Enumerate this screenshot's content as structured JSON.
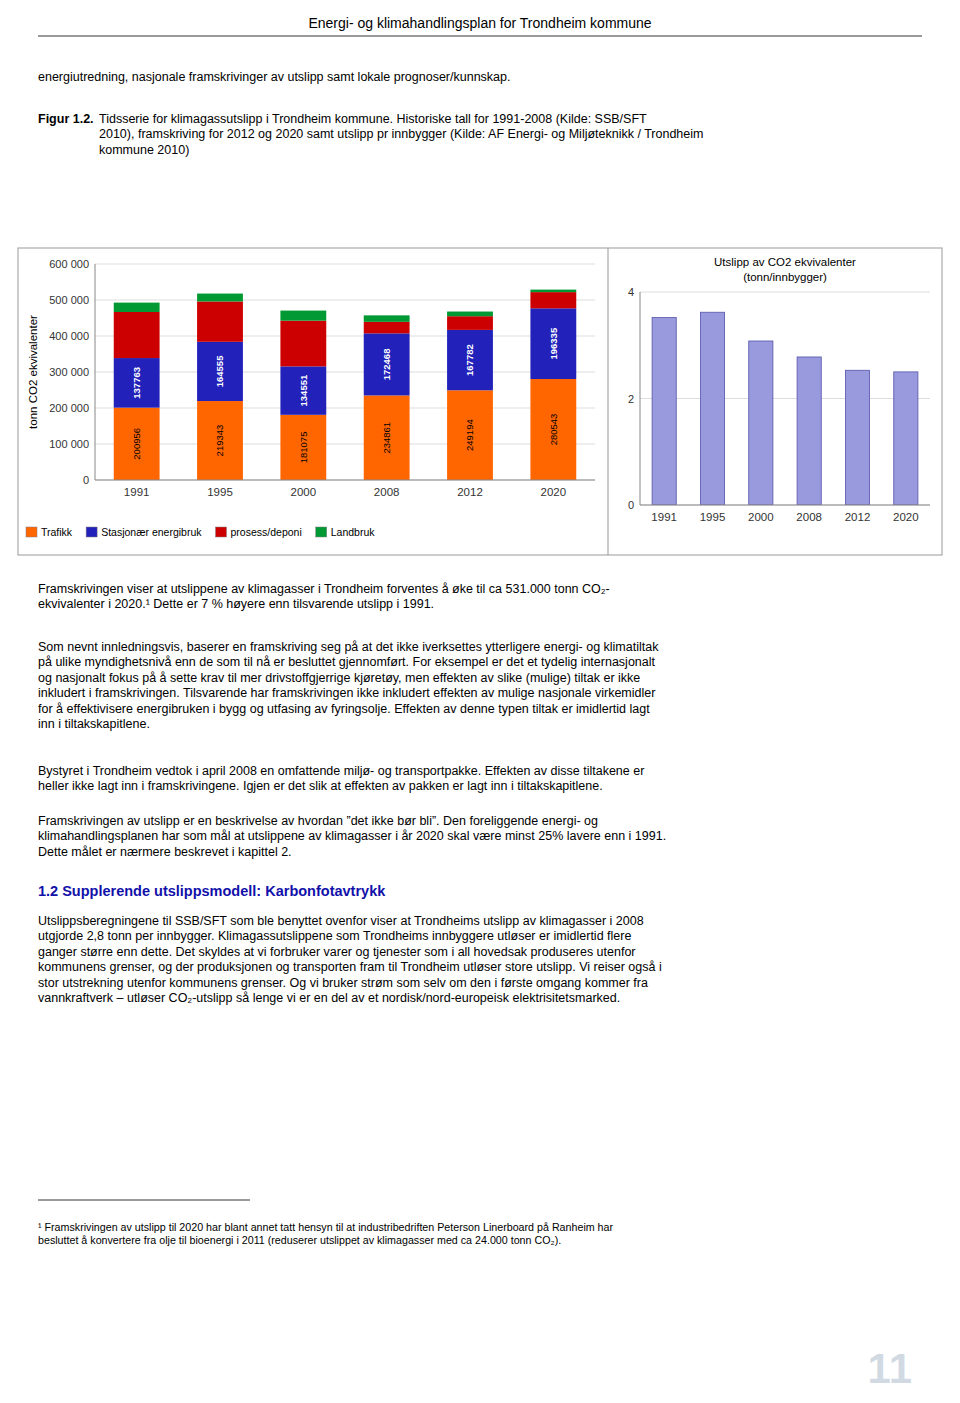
{
  "chart_data": [
    {
      "type": "bar",
      "stacked": true,
      "categories": [
        "1991",
        "1995",
        "2000",
        "2008",
        "2012",
        "2020"
      ],
      "series": [
        {
          "name": "Trafikk",
          "color": "#FF6600",
          "values": [
            200956,
            219343,
            181075,
            234861,
            249194,
            280543
          ],
          "data_labels": true
        },
        {
          "name": "Stasjonær energibruk",
          "color": "#2222BB",
          "values": [
            137763,
            164555,
            134551,
            172468,
            167782,
            196335
          ],
          "data_labels": true
        },
        {
          "name": "prosess/deponi",
          "color": "#CC0000",
          "values": [
            128000,
            112000,
            127000,
            32000,
            38000,
            45000
          ]
        },
        {
          "name": "Landbruk",
          "color": "#009933",
          "values": [
            26000,
            22000,
            28000,
            18000,
            13000,
            7000
          ]
        }
      ],
      "ylabel": "tonn CO2 ekvivalenter",
      "ylim": [
        0,
        600000
      ],
      "yticks": [
        0,
        {
          "value": 100000,
          "label": "100 000"
        },
        {
          "value": 200000,
          "label": "200 000"
        },
        {
          "value": 300000,
          "label": "300 000"
        },
        {
          "value": 400000,
          "label": "400 000"
        },
        {
          "value": 500000,
          "label": "500 000"
        },
        {
          "value": 600000,
          "label": "600 000"
        }
      ],
      "grid": true,
      "legend": "bottom"
    },
    {
      "type": "bar",
      "title": "Utslipp av CO2 ekvivalenter",
      "subtitle": "(tonn/innbygger)",
      "categories": [
        "1991",
        "1995",
        "2000",
        "2008",
        "2012",
        "2020"
      ],
      "values": [
        3.52,
        3.62,
        3.08,
        2.78,
        2.53,
        2.5
      ],
      "color": "#9999DD",
      "ylim": [
        0,
        4
      ],
      "yticks": [
        0,
        2,
        4
      ],
      "grid": true
    }
  ],
  "page": {
    "title": "Energi- og klimahandlingsplan for Trondheim kommune",
    "intro": [
      "energiutredning, nasjonale framskrivinger av utslipp samt lokale prognoser/kunnskap."
    ],
    "caption": {
      "label": "Figur 1.2.",
      "lines": [
        "Tidsserie for klimagassutslipp i Trondheim kommune. Historiske tall for 1991-2008 (Kilde: SSB/SFT",
        "2010), framskriving for 2012 og 2020 samt utslipp pr innbygger (Kilde: AF Energi- og Miljøteknikk / Trondheim",
        "kommune 2010)"
      ]
    },
    "paragraphs_1": [
      [
        "Framskrivingen viser at utslippene av klimagasser i Trondheim forventes å øke til ca 531.000 tonn CO₂-",
        "ekvivalenter i 2020.¹ Dette er 7 % høyere enn tilsvarende utslipp i 1991."
      ],
      [
        "Som nevnt innledningsvis, baserer en framskriving seg på at det ikke iverksettes ytterligere energi- og klimatiltak",
        "på ulike myndighetsnivå enn de som til nå er besluttet gjennomført. For eksempel er det et tydelig internasjonalt",
        "og nasjonalt fokus på å sette krav til mer drivstoffgjerrige kjøretøy, men effekten av slike (mulige) tiltak er ikke",
        "inkludert i framskrivingen. Tilsvarende har framskrivingen ikke inkludert effekten av mulige nasjonale virkemidler",
        "for å effektivisere energibruken i bygg og utfasing av fyringsolje. Effekten av denne typen tiltak er imidlertid lagt",
        "inn i tiltakskapitlene."
      ],
      [
        "Bystyret i Trondheim vedtok i april 2008 en omfattende miljø- og transportpakke. Effekten av disse tiltakene er",
        "heller ikke lagt inn i framskrivingene. Igjen er det slik at effekten av pakken er lagt inn i tiltakskapitlene."
      ],
      [
        "Framskrivingen av utslipp er en beskrivelse av hvordan ”det ikke bør bli”. Den foreliggende energi- og",
        "klimahandlingsplanen har som mål at utslippene av klimagasser i år 2020 skal være minst 25% lavere enn i 1991.",
        "Dette målet er nærmere beskrevet i kapittel 2."
      ]
    ],
    "heading": "1.2 Supplerende utslippsmodell: Karbonfotavtrykk",
    "paragraphs_2": [
      [
        "Utslippsberegningene til SSB/SFT som ble benyttet ovenfor viser at Trondheims utslipp av klimagasser i 2008",
        "utgjorde 2,8 tonn per innbygger. Klimagassutslippene som Trondheims innbyggere utløser er imidlertid flere",
        "ganger større enn dette. Det skyldes at vi forbruker varer og tjenester som i all hovedsak produseres utenfor",
        "kommunens grenser, og der produksjonen og transporten fram til Trondheim utløser store utslipp. Vi reiser også i",
        "stor utstrekning utenfor kommunens grenser. Og vi bruker strøm som selv om den i første omgang kommer fra",
        "vannkraftverk – utløser CO₂-utslipp så lenge vi er en del av et nordisk/nord-europeisk elektrisitetsmarked."
      ]
    ],
    "footnote": [
      "¹ Framskrivingen av utslipp til 2020 har blant annet tatt hensyn til at industribedriften Peterson Linerboard på Ranheim har",
      "besluttet å konvertere fra olje til bioenergi i 2011 (reduserer utslippet av klimagasser med ca 24.000 tonn CO₂)."
    ],
    "page_number": "11"
  }
}
